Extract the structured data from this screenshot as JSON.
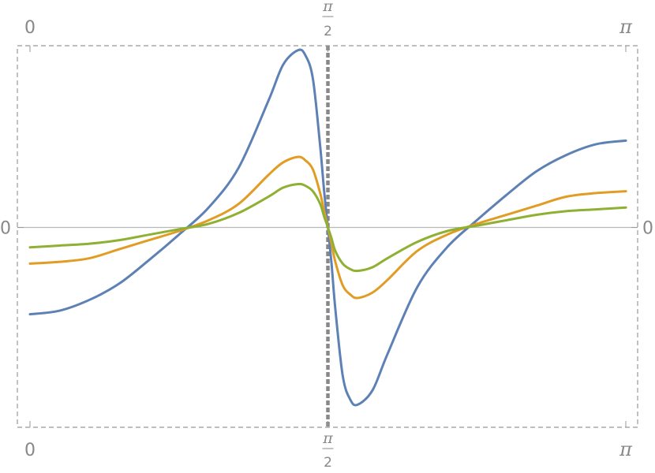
{
  "chart_data": {
    "type": "line",
    "title": "",
    "xlabel": "",
    "ylabel": "",
    "xlim": [
      0,
      3.14159265
    ],
    "ylim": [
      -1.0,
      0.9
    ],
    "grid": false,
    "frame": "dashed",
    "x_ticks": [
      {
        "value": 0,
        "label": "0"
      },
      {
        "value": 1.5707963,
        "num": "π",
        "den": "2"
      },
      {
        "value": 3.14159265,
        "label": "π"
      }
    ],
    "y_ticks": [
      {
        "value": 0,
        "label": "0"
      }
    ],
    "vertical_reference": {
      "x": 1.5707963,
      "style": "dashed"
    },
    "series": [
      {
        "color": "#5e81b5",
        "x": [
          0,
          0.157,
          0.314,
          0.471,
          0.628,
          0.785,
          0.942,
          1.1,
          1.257,
          1.335,
          1.414,
          1.453,
          1.492,
          1.53,
          1.551,
          1.571,
          1.59,
          1.61,
          1.649,
          1.688,
          1.727,
          1.806,
          1.885,
          2.042,
          2.199,
          2.356,
          2.513,
          2.67,
          2.827,
          2.985,
          3.142
        ],
        "y": [
          -0.48,
          -0.46,
          -0.4,
          -0.31,
          -0.18,
          -0.04,
          0.11,
          0.33,
          0.7,
          0.9,
          0.98,
          0.95,
          0.82,
          0.45,
          0.2,
          0.0,
          -0.2,
          -0.45,
          -0.82,
          -0.95,
          -0.98,
          -0.9,
          -0.7,
          -0.33,
          -0.11,
          0.04,
          0.18,
          0.31,
          0.4,
          0.46,
          0.48
        ]
      },
      {
        "color": "#e19c24",
        "x": [
          0,
          0.157,
          0.314,
          0.471,
          0.628,
          0.785,
          0.942,
          1.1,
          1.257,
          1.335,
          1.414,
          1.453,
          1.492,
          1.53,
          1.551,
          1.571,
          1.59,
          1.61,
          1.649,
          1.688,
          1.727,
          1.806,
          1.885,
          2.042,
          2.199,
          2.356,
          2.513,
          2.67,
          2.827,
          2.985,
          3.142
        ],
        "y": [
          -0.2,
          -0.19,
          -0.17,
          -0.12,
          -0.07,
          -0.02,
          0.04,
          0.13,
          0.29,
          0.36,
          0.39,
          0.37,
          0.32,
          0.19,
          0.09,
          0.0,
          -0.09,
          -0.19,
          -0.32,
          -0.37,
          -0.39,
          -0.36,
          -0.29,
          -0.13,
          -0.04,
          0.02,
          0.07,
          0.12,
          0.17,
          0.19,
          0.2
        ]
      },
      {
        "color": "#8fb032",
        "x": [
          0,
          0.157,
          0.314,
          0.471,
          0.628,
          0.785,
          0.942,
          1.1,
          1.257,
          1.335,
          1.414,
          1.453,
          1.492,
          1.53,
          1.551,
          1.571,
          1.59,
          1.61,
          1.649,
          1.688,
          1.727,
          1.806,
          1.885,
          2.042,
          2.199,
          2.356,
          2.513,
          2.67,
          2.827,
          2.985,
          3.142
        ],
        "y": [
          -0.11,
          -0.1,
          -0.09,
          -0.07,
          -0.04,
          -0.01,
          0.02,
          0.08,
          0.17,
          0.22,
          0.24,
          0.23,
          0.2,
          0.13,
          0.06,
          0.0,
          -0.06,
          -0.13,
          -0.2,
          -0.23,
          -0.24,
          -0.22,
          -0.17,
          -0.08,
          -0.02,
          0.01,
          0.04,
          0.07,
          0.09,
          0.1,
          0.11
        ]
      }
    ]
  }
}
